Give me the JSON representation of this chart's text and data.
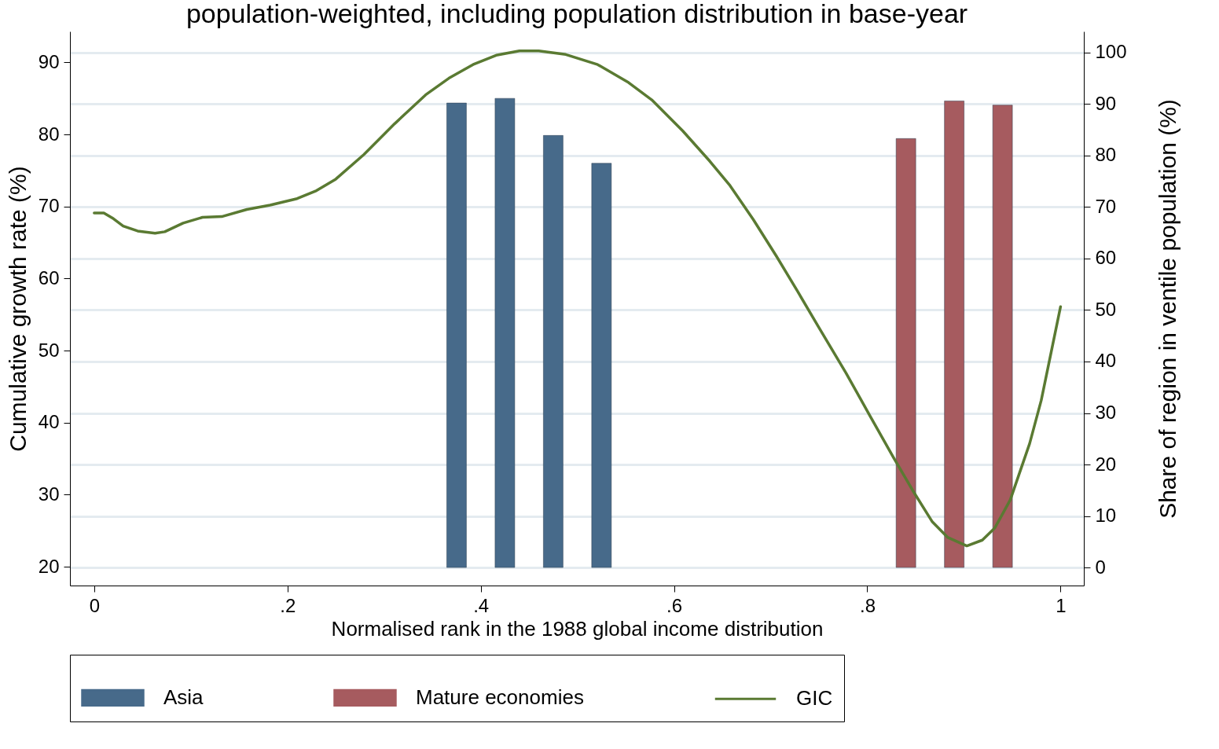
{
  "chart_data": {
    "type": "bar",
    "title": "population-weighted, including population distribution in base-year",
    "xlabel": "Normalised rank in the 1988 global income distribution",
    "ylabel": "Cumulative growth rate (%)",
    "y2label": "Share of region in ventile population (%)",
    "series": [
      {
        "name": "Asia",
        "axis": "y2",
        "color": "#476a8a",
        "x": [
          0.375,
          0.425,
          0.475,
          0.525
        ],
        "values": [
          90.2,
          91.1,
          83.9,
          78.5
        ]
      },
      {
        "name": "Mature economies",
        "axis": "y2",
        "color": "#a65b5f",
        "x": [
          0.84,
          0.89,
          0.94
        ],
        "values": [
          83.3,
          90.6,
          89.8
        ]
      },
      {
        "name": "GIC",
        "type": "line",
        "axis": "y",
        "color": "#5a7a32",
        "x": [
          0,
          0.01,
          0.02,
          0.03,
          0.045,
          0.063,
          0.073,
          0.092,
          0.112,
          0.132,
          0.158,
          0.182,
          0.21,
          0.23,
          0.25,
          0.279,
          0.311,
          0.343,
          0.367,
          0.392,
          0.416,
          0.44,
          0.46,
          0.488,
          0.521,
          0.553,
          0.577,
          0.609,
          0.637,
          0.658,
          0.682,
          0.706,
          0.728,
          0.75,
          0.778,
          0.803,
          0.827,
          0.847,
          0.867,
          0.883,
          0.903,
          0.919,
          0.932,
          0.948,
          0.968,
          0.98,
          1.0
        ],
        "values": [
          69.1,
          69.1,
          68.3,
          67.3,
          66.6,
          66.3,
          66.5,
          67.7,
          68.5,
          68.6,
          69.6,
          70.2,
          71.1,
          72.2,
          73.8,
          77.2,
          81.5,
          85.5,
          87.8,
          89.7,
          91.0,
          91.6,
          91.6,
          91.1,
          89.7,
          87.2,
          84.8,
          80.5,
          76.3,
          72.9,
          68.2,
          63.1,
          58.2,
          53.2,
          46.9,
          40.9,
          35.2,
          30.6,
          26.3,
          24.1,
          22.9,
          23.7,
          25.4,
          29.3,
          37.1,
          43.1,
          56.1
        ]
      }
    ],
    "xlim": [
      -0.021,
      1.02
    ],
    "xticks": [
      0,
      {
        "value": 0.2,
        "label": ".2"
      },
      {
        "value": 0.4,
        "label": ".4"
      },
      {
        "value": 0.6,
        "label": ".6"
      },
      {
        "value": 0.8,
        "label": ".8"
      },
      1
    ],
    "ylim": [
      17.4,
      94.3
    ],
    "yticks": [
      20,
      30,
      40,
      50,
      60,
      70,
      80,
      90
    ],
    "y2lim": [
      -3.5,
      104.1
    ],
    "y2ticks": [
      0,
      10,
      20,
      30,
      40,
      50,
      60,
      70,
      80,
      90,
      100
    ],
    "grid": true,
    "legend": "bottom"
  }
}
